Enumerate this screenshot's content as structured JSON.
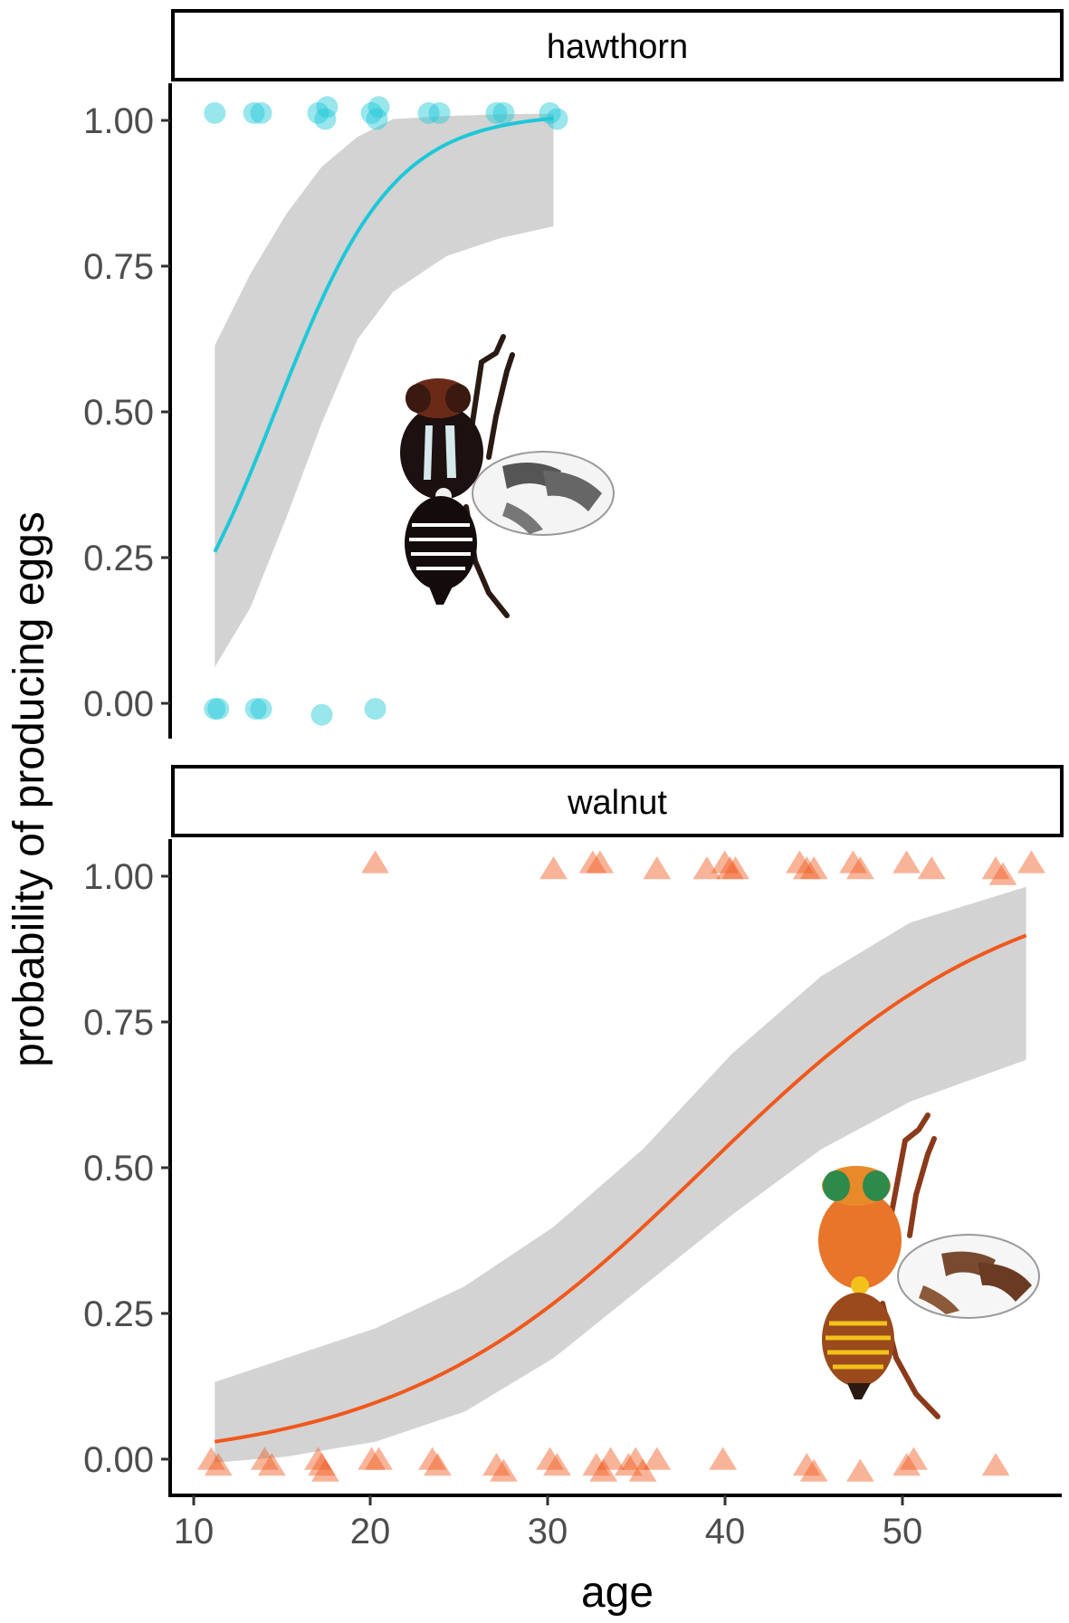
{
  "chart_data": {
    "type": "scatter",
    "subtype": "faceted logistic regression with confidence band",
    "ylabel": "probability of producing eggs",
    "xlabel": "age",
    "xlim": [
      8.5,
      58.5
    ],
    "x_ticks": [
      10,
      20,
      30,
      40,
      50
    ],
    "x_tick_labels": [
      "10",
      "20",
      "30",
      "40",
      "50"
    ],
    "y_ticks": [
      0,
      0.25,
      0.5,
      0.75,
      1.0
    ],
    "y_tick_labels": [
      "0.00",
      "0.25",
      "0.50",
      "0.75",
      "1.00"
    ],
    "grid": false,
    "panels": [
      {
        "strip": "hawthorn",
        "ylim": [
          -0.05,
          1.05
        ],
        "color": "#1CC8D8",
        "band_color": "#d3d3d3",
        "marker": "circle",
        "fit": {
          "x0": 11,
          "x1": 30,
          "intercept": -4.35,
          "slope": 0.302
        },
        "band_lower": [
          [
            11,
            0.07
          ],
          [
            13,
            0.17
          ],
          [
            15,
            0.32
          ],
          [
            17,
            0.48
          ],
          [
            19,
            0.62
          ],
          [
            21,
            0.7
          ],
          [
            24,
            0.76
          ],
          [
            27,
            0.79
          ],
          [
            30,
            0.81
          ]
        ],
        "band_upper": [
          [
            11,
            0.61
          ],
          [
            13,
            0.73
          ],
          [
            15,
            0.83
          ],
          [
            17,
            0.91
          ],
          [
            19,
            0.96
          ],
          [
            21,
            0.99
          ],
          [
            24,
            0.995
          ],
          [
            27,
            0.998
          ],
          [
            30,
            0.999
          ]
        ],
        "points": [
          [
            11.0,
            1.0
          ],
          [
            13.2,
            1.0
          ],
          [
            13.6,
            1.0
          ],
          [
            16.8,
            1.0
          ],
          [
            17.2,
            0.99
          ],
          [
            17.3,
            1.01
          ],
          [
            19.8,
            1.0
          ],
          [
            20.1,
            0.99
          ],
          [
            20.2,
            1.01
          ],
          [
            23.0,
            1.0
          ],
          [
            23.6,
            1.0
          ],
          [
            26.8,
            1.0
          ],
          [
            27.2,
            1.0
          ],
          [
            29.8,
            1.0
          ],
          [
            30.2,
            0.99
          ],
          [
            11.0,
            0.0
          ],
          [
            11.2,
            0.0
          ],
          [
            13.3,
            0.0
          ],
          [
            13.6,
            0.0
          ],
          [
            17.0,
            -0.01
          ],
          [
            20.0,
            0.0
          ]
        ]
      },
      {
        "strip": "walnut",
        "ylim": [
          -0.05,
          1.05
        ],
        "color": "#F0581C",
        "band_color": "#d3d3d3",
        "marker": "triangle",
        "fit": {
          "x0": 11,
          "x1": 56.5,
          "intercept": -4.45,
          "slope": 0.1155
        },
        "band_lower": [
          [
            11,
            0.005
          ],
          [
            15,
            0.015
          ],
          [
            20,
            0.04
          ],
          [
            25,
            0.09
          ],
          [
            30,
            0.18
          ],
          [
            35,
            0.3
          ],
          [
            40,
            0.42
          ],
          [
            45,
            0.53
          ],
          [
            50,
            0.61
          ],
          [
            56.5,
            0.68
          ]
        ],
        "band_upper": [
          [
            11,
            0.14
          ],
          [
            15,
            0.18
          ],
          [
            20,
            0.23
          ],
          [
            25,
            0.3
          ],
          [
            30,
            0.4
          ],
          [
            35,
            0.53
          ],
          [
            40,
            0.69
          ],
          [
            45,
            0.82
          ],
          [
            50,
            0.91
          ],
          [
            56.5,
            0.97
          ]
        ],
        "points": [
          [
            20.0,
            1.01
          ],
          [
            30.0,
            1.0
          ],
          [
            32.2,
            1.01
          ],
          [
            32.6,
            1.01
          ],
          [
            35.8,
            1.0
          ],
          [
            38.6,
            1.0
          ],
          [
            39.6,
            1.01
          ],
          [
            39.9,
            1.0
          ],
          [
            40.2,
            1.0
          ],
          [
            43.8,
            1.01
          ],
          [
            44.2,
            1.0
          ],
          [
            44.6,
            1.0
          ],
          [
            46.8,
            1.01
          ],
          [
            47.2,
            1.0
          ],
          [
            49.8,
            1.01
          ],
          [
            51.2,
            1.0
          ],
          [
            54.8,
            1.0
          ],
          [
            55.2,
            0.99
          ],
          [
            56.8,
            1.01
          ],
          [
            10.8,
            0.01
          ],
          [
            11.2,
            0.0
          ],
          [
            13.8,
            0.01
          ],
          [
            14.2,
            0.0
          ],
          [
            16.8,
            0.01
          ],
          [
            17.0,
            0.0
          ],
          [
            17.2,
            -0.01
          ],
          [
            19.8,
            0.01
          ],
          [
            20.2,
            0.01
          ],
          [
            23.2,
            0.01
          ],
          [
            23.5,
            0.0
          ],
          [
            26.8,
            0.0
          ],
          [
            27.2,
            -0.01
          ],
          [
            29.8,
            0.01
          ],
          [
            30.2,
            0.0
          ],
          [
            32.4,
            0.0
          ],
          [
            32.8,
            -0.01
          ],
          [
            33.2,
            0.01
          ],
          [
            34.2,
            0.0
          ],
          [
            34.6,
            0.01
          ],
          [
            35.0,
            -0.01
          ],
          [
            35.8,
            0.01
          ],
          [
            39.5,
            0.01
          ],
          [
            44.2,
            0.0
          ],
          [
            44.6,
            -0.01
          ],
          [
            47.2,
            -0.01
          ],
          [
            49.8,
            0.0
          ],
          [
            50.2,
            0.01
          ],
          [
            54.8,
            0.0
          ]
        ]
      }
    ]
  },
  "illustrations": {
    "hawthorn_fly": "dark fly illustration (hawthorn host race)",
    "walnut_fly": "orange fly illustration (walnut host)"
  }
}
